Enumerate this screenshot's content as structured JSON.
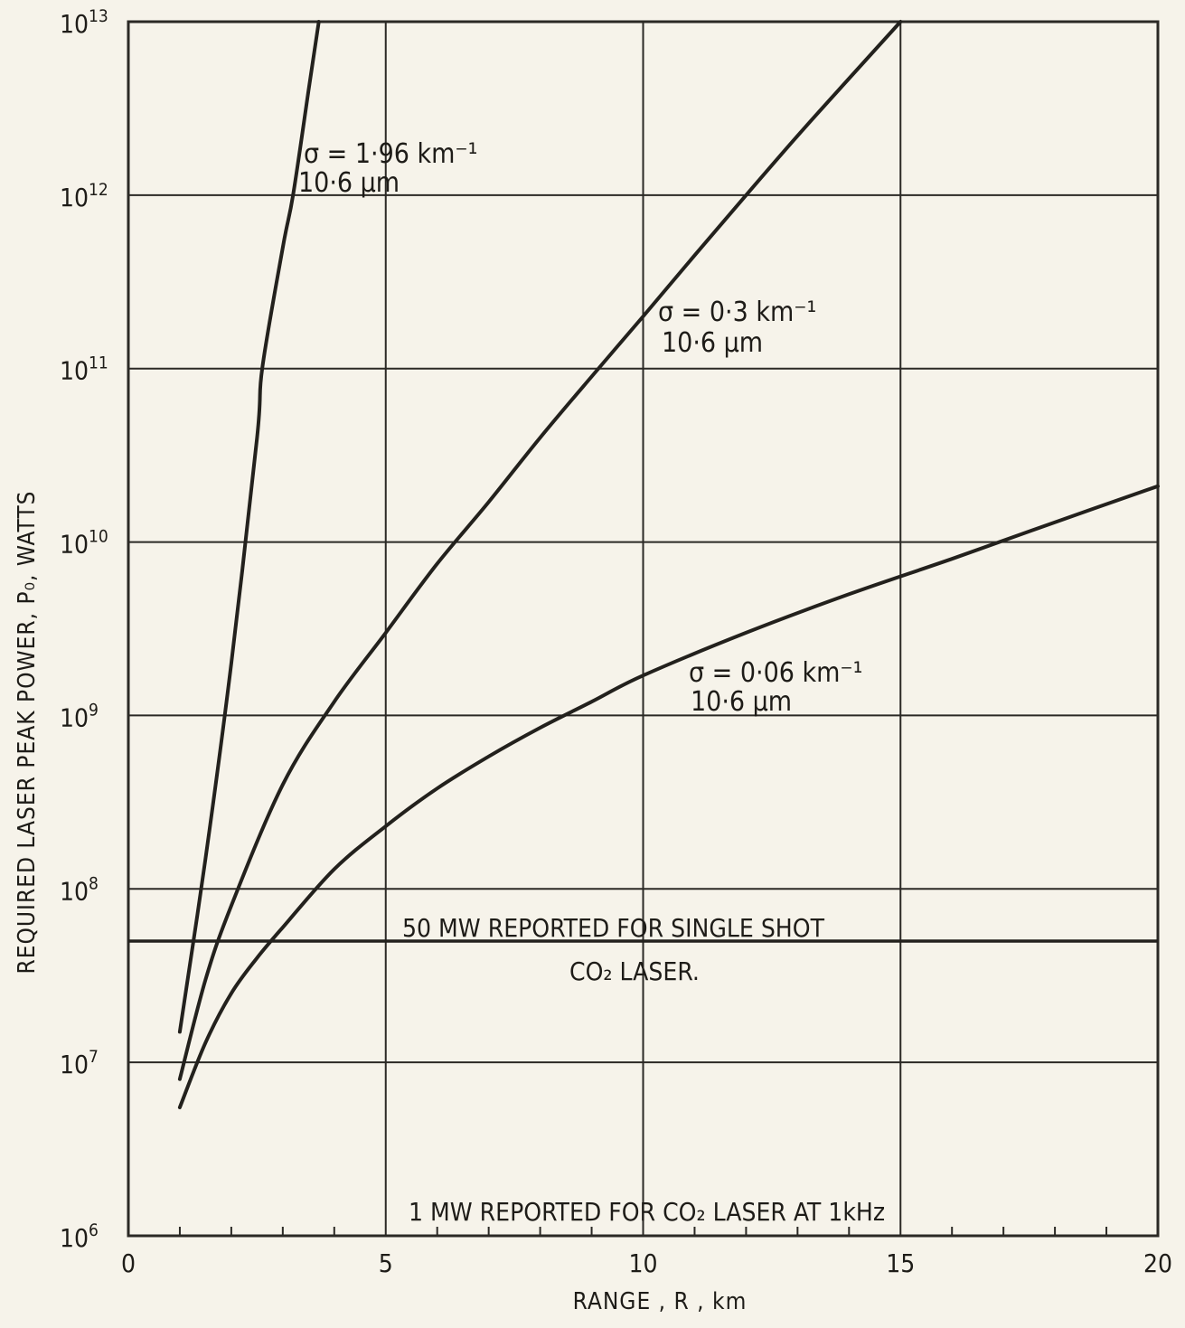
{
  "chart_data": {
    "type": "line",
    "xlabel": "RANGE , R , km",
    "ylabel": "REQUIRED LASER PEAK POWER, P₀, WATTS",
    "xlim": [
      0,
      20
    ],
    "ylim": [
      1000000,
      10000000000000
    ],
    "y_scale": "log",
    "grid": true,
    "x_ticks": [
      {
        "value": 0,
        "label": "0"
      },
      {
        "value": 5,
        "label": "5"
      },
      {
        "value": 10,
        "label": "10"
      },
      {
        "value": 15,
        "label": "15"
      },
      {
        "value": 20,
        "label": "20"
      }
    ],
    "y_ticks": [
      {
        "exp": 6,
        "base": "10",
        "sup": "6"
      },
      {
        "exp": 7,
        "base": "10",
        "sup": "7"
      },
      {
        "exp": 8,
        "base": "10",
        "sup": "8"
      },
      {
        "exp": 9,
        "base": "10",
        "sup": "9"
      },
      {
        "exp": 10,
        "base": "10",
        "sup": "10"
      },
      {
        "exp": 11,
        "base": "10",
        "sup": "11"
      },
      {
        "exp": 12,
        "base": "10",
        "sup": "12"
      },
      {
        "exp": 13,
        "base": "10",
        "sup": "13"
      }
    ],
    "series": [
      {
        "name": "σ = 1·96 km⁻¹",
        "sublabel": "10·6 μm",
        "x": [
          1.0,
          1.5,
          2.0,
          2.5,
          2.6,
          3.0,
          3.2,
          3.5,
          3.7
        ],
        "y": [
          15000000,
          150000000,
          2000000000,
          40000000000,
          100000000000,
          500000000000,
          1000000000000,
          4000000000000,
          10000000000000
        ]
      },
      {
        "name": "σ = 0·3 km⁻¹",
        "sublabel": "10·6 μm",
        "x": [
          1.0,
          1.5,
          2.0,
          3.0,
          4.0,
          5.0,
          6.0,
          7.0,
          8.0,
          9.0,
          10.0,
          11.0,
          12.0,
          13.0,
          14.0,
          15.0
        ],
        "y": [
          8000000,
          30000000,
          80000000,
          400000000,
          1200000000,
          3000000000,
          7500000000,
          17000000000,
          40000000000,
          90000000000,
          200000000000,
          450000000000,
          1000000000000,
          2200000000000,
          4700000000000,
          10000000000000
        ]
      },
      {
        "name": "σ = 0·06 km⁻¹",
        "sublabel": "10·6 μm",
        "x": [
          1.0,
          1.5,
          2.0,
          2.5,
          3.0,
          4.0,
          5.0,
          6.0,
          7.0,
          8.0,
          9.0,
          10.0,
          12.0,
          14.0,
          16.0,
          18.0,
          20.0
        ],
        "y": [
          5500000,
          13000000,
          25000000,
          40000000,
          60000000,
          130000000,
          230000000,
          380000000,
          580000000,
          850000000,
          1200000000,
          1700000000,
          3000000000,
          5000000000,
          8000000000,
          13000000000,
          21000000000
        ]
      }
    ],
    "reference_lines": [
      {
        "y": 50000000,
        "label_line1": "50 MW   REPORTED FOR SINGLE SHOT",
        "label_line2": "CO₂   LASER."
      },
      {
        "y": 1000000,
        "label_line1": "1 MW REPORTED FOR CO₂ LASER AT 1kHz"
      }
    ]
  }
}
